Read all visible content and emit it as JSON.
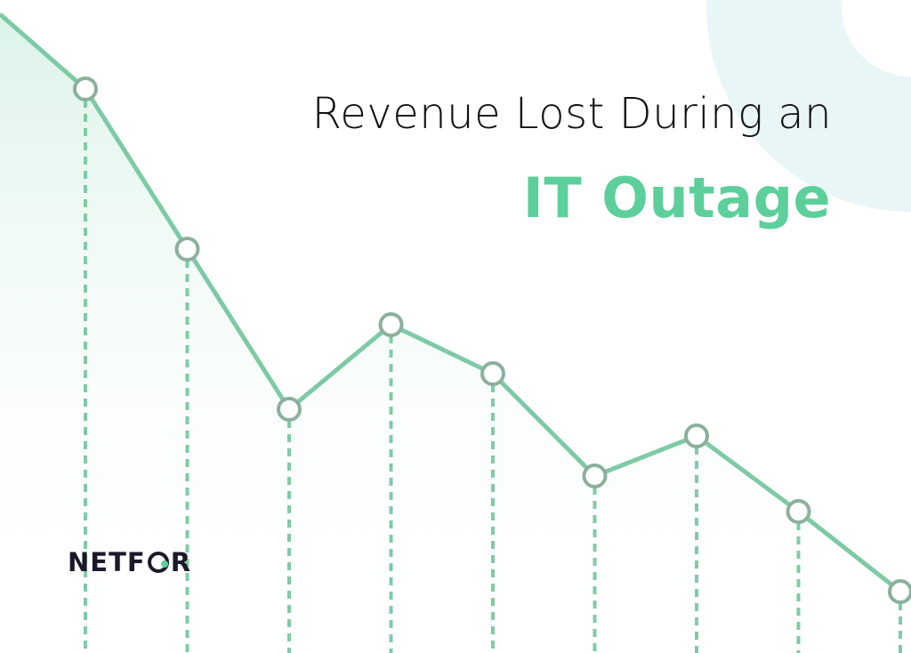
{
  "title": {
    "line1": "Revenue Lost During an",
    "line2": "IT Outage"
  },
  "logo": {
    "text_before": "NETF",
    "text_after": "R",
    "alt": "NETFOR"
  },
  "colors": {
    "accent": "#5ccf9a",
    "line": "#7dcaa5",
    "marker_stroke": "#8bb09c",
    "dash": "#7fcba5",
    "fill_top": "#d6f1e5",
    "deco_circle": "#e9f6f8",
    "text_dark": "#111111",
    "logo_dark": "#1a1a2a"
  },
  "chart_data": {
    "type": "line",
    "title": "Revenue Lost During an IT Outage",
    "xlabel": "",
    "ylabel": "",
    "x": [
      1,
      2,
      3,
      4,
      5,
      6,
      7,
      8,
      9
    ],
    "series": [
      {
        "values": [
          90,
          72,
          54,
          63.5,
          58,
          46.5,
          51,
          42.5,
          33.5
        ]
      }
    ],
    "ylim": [
      0,
      100
    ],
    "grid": false,
    "legend": "none",
    "markers": "hollow-circle",
    "drop_lines": "dashed"
  }
}
